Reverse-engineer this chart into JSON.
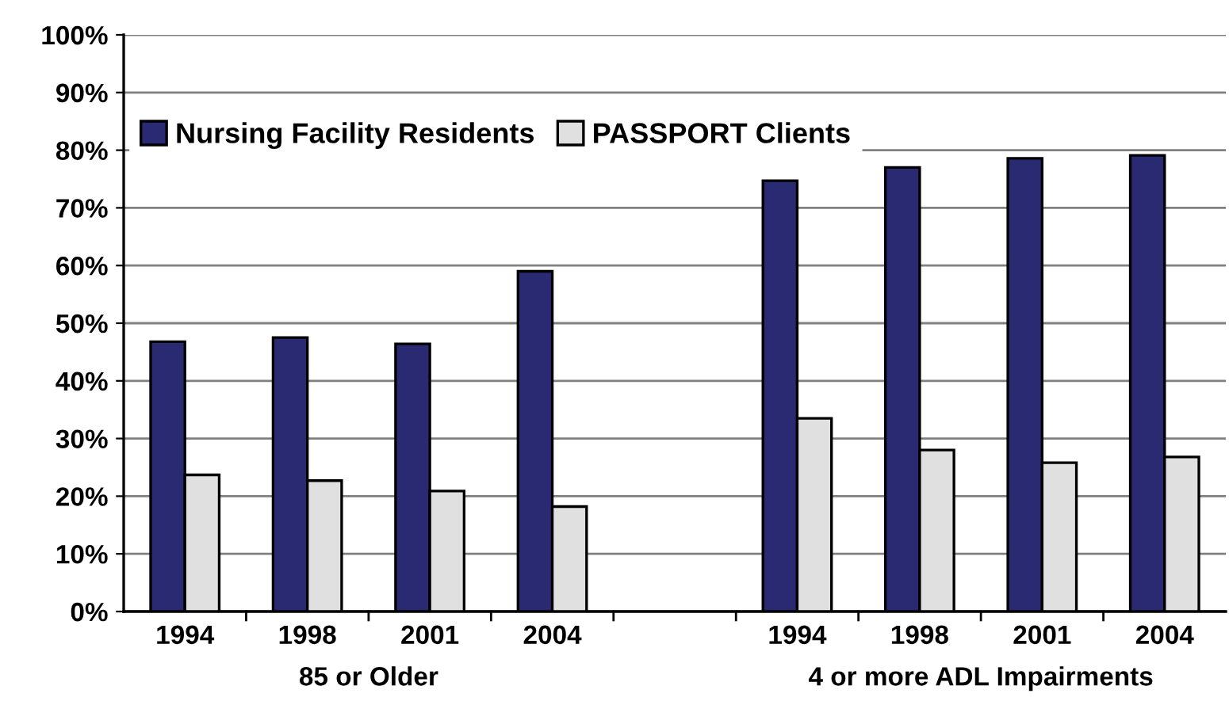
{
  "chart_data": {
    "type": "bar",
    "categories": [
      "1994",
      "1998",
      "2001",
      "2004",
      null,
      "1994",
      "1998",
      "2001",
      "2004"
    ],
    "series": [
      {
        "name": "Nursing Facility Residents",
        "color": "#2a2a72",
        "values": [
          46.8,
          47.5,
          46.4,
          59.0,
          null,
          74.7,
          77.0,
          78.6,
          79.1
        ]
      },
      {
        "name": "PASSPORT Clients",
        "color": "#e0e0e0",
        "values": [
          23.7,
          22.7,
          20.9,
          18.2,
          null,
          33.5,
          28.0,
          25.8,
          26.8
        ]
      }
    ],
    "ylim": [
      0,
      100
    ],
    "yticks": [
      {
        "value": 0,
        "label": "0%"
      },
      {
        "value": 10,
        "label": "10%"
      },
      {
        "value": 20,
        "label": "20%"
      },
      {
        "value": 30,
        "label": "30%"
      },
      {
        "value": 40,
        "label": "40%"
      },
      {
        "value": 50,
        "label": "50%"
      },
      {
        "value": 60,
        "label": "60%"
      },
      {
        "value": 70,
        "label": "70%"
      },
      {
        "value": 80,
        "label": "80%"
      },
      {
        "value": 90,
        "label": "90%"
      },
      {
        "value": 100,
        "label": "100%"
      }
    ],
    "annotations": [
      "85 or Older",
      "4 or more ADL Impairments"
    ],
    "grid": "y",
    "legend": "top left"
  }
}
